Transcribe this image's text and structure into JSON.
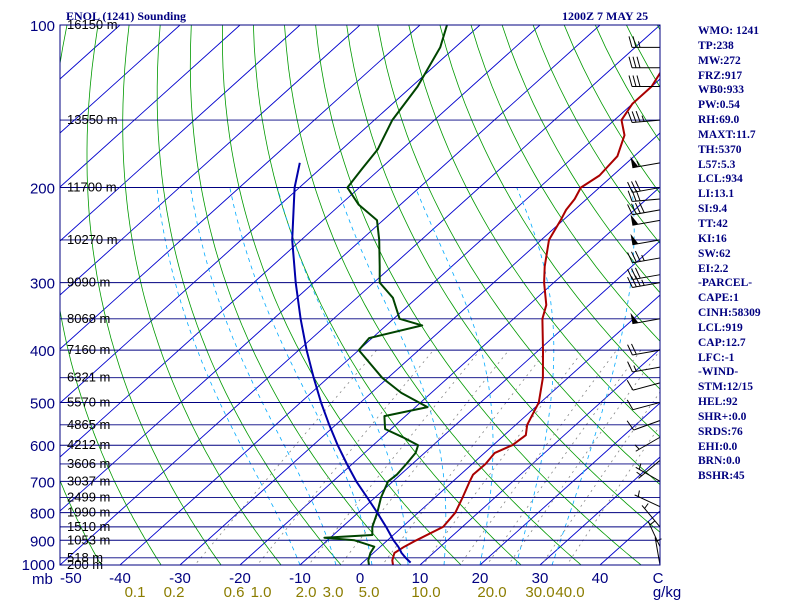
{
  "header": {
    "station": "ENOL (1241) Sounding",
    "time": "1200Z  7 MAY 25"
  },
  "indices": [
    "WMO: 1241",
    "TP:238",
    "MW:272",
    "FRZ:917",
    "WB0:933",
    "PW:0.54",
    "RH:69.0",
    "MAXT:11.7",
    "TH:5370",
    "L57:5.3",
    "LCL:934",
    "LI:13.1",
    "SI:9.4",
    "TT:42",
    "KI:16",
    "SW:62",
    "EI:2.2",
    "-PARCEL-",
    "CAPE:1",
    "CINH:58309",
    "LCL:919",
    "CAP:12.7",
    "LFC:-1",
    "-WIND-",
    "STM:12/15",
    "HEL:92",
    "SHR+:0.0",
    "SRDS:76",
    "EHI:0.0",
    "BRN:0.0",
    "BSHR:45"
  ],
  "colors": {
    "background": "#ffffff",
    "frame": "#000080",
    "isobar": "#000080",
    "isotherm": "#0000cc",
    "dry_adiabat": "#009900",
    "mixing_ratio": "#888888",
    "moist_adiabat": "#00aaff",
    "temperature": "#aa0000",
    "dewpoint": "#004400",
    "parcel": "#0000aa",
    "axis_label": "#000080",
    "mixing_label": "#8b7d00"
  },
  "chart_data": {
    "type": "line",
    "title": "",
    "xlabel": "C",
    "ylabel": "mb",
    "xlim": [
      -50,
      50
    ],
    "ylim": [
      1000,
      100
    ],
    "y_scale": "log",
    "grid": true,
    "pressure_ticks": [
      100,
      200,
      300,
      400,
      500,
      600,
      700,
      800,
      900,
      1000
    ],
    "pressure_axis_label": "mb",
    "temperature_ticks": [
      {
        "label": "-50",
        "value": -50
      },
      {
        "label": "-40",
        "value": -40
      },
      {
        "label": "-30",
        "value": -30
      },
      {
        "label": "-20",
        "value": -20
      },
      {
        "label": "-10",
        "value": -10
      },
      {
        "label": "0",
        "value": 0
      },
      {
        "label": "10",
        "value": 10
      },
      {
        "label": "20",
        "value": 20
      },
      {
        "label": "30",
        "value": 30
      },
      {
        "label": "40",
        "value": 40
      }
    ],
    "temperature_unit": "C",
    "mixing_ratio_ticks": [
      {
        "label": "0.1",
        "value": -37.5
      },
      {
        "label": "0.2",
        "value": -31
      },
      {
        "label": "0.6",
        "value": -21
      },
      {
        "label": "1.0",
        "value": -16.5
      },
      {
        "label": "2.0",
        "value": -9
      },
      {
        "label": "3.0",
        "value": -4.5
      },
      {
        "label": "5.0",
        "value": 1.5
      },
      {
        "label": "10.0",
        "value": 11
      },
      {
        "label": "20.0",
        "value": 22
      },
      {
        "label": "30.0",
        "value": 30
      },
      {
        "label": "40.0",
        "value": 35
      }
    ],
    "mixing_ratio_unit": "g/kg",
    "height_labels": [
      {
        "p": 1000,
        "label": "200 m"
      },
      {
        "p": 970,
        "label": "518 m"
      },
      {
        "p": 900,
        "label": "1053 m"
      },
      {
        "p": 850,
        "label": "1510 m"
      },
      {
        "p": 800,
        "label": "1990 m"
      },
      {
        "p": 750,
        "label": "2499 m"
      },
      {
        "p": 700,
        "label": "3037 m"
      },
      {
        "p": 650,
        "label": "3606 m"
      },
      {
        "p": 600,
        "label": "4212 m"
      },
      {
        "p": 550,
        "label": "4865 m"
      },
      {
        "p": 500,
        "label": "5570 m"
      },
      {
        "p": 450,
        "label": "6321 m"
      },
      {
        "p": 400,
        "label": "7160 m"
      },
      {
        "p": 350,
        "label": "8068 m"
      },
      {
        "p": 300,
        "label": "9090 m"
      },
      {
        "p": 250,
        "label": "10270 m"
      },
      {
        "p": 200,
        "label": "11700 m"
      },
      {
        "p": 150,
        "label": "13550 m"
      },
      {
        "p": 100,
        "label": "16150 m"
      }
    ],
    "series": [
      {
        "key": "temperature",
        "points": [
          [
            1000,
            5.5
          ],
          [
            980,
            4.5
          ],
          [
            950,
            3.5
          ],
          [
            925,
            4.0
          ],
          [
            900,
            4.8
          ],
          [
            850,
            6.8
          ],
          [
            800,
            6.2
          ],
          [
            750,
            4.6
          ],
          [
            700,
            2.8
          ],
          [
            680,
            2.1
          ],
          [
            650,
            2.2
          ],
          [
            620,
            1.7
          ],
          [
            600,
            3.2
          ],
          [
            575,
            3.6
          ],
          [
            550,
            1.9
          ],
          [
            500,
            -0.3
          ],
          [
            450,
            -4.2
          ],
          [
            400,
            -9.3
          ],
          [
            350,
            -15.2
          ],
          [
            330,
            -17.1
          ],
          [
            300,
            -21.6
          ],
          [
            280,
            -24.5
          ],
          [
            250,
            -28.7
          ],
          [
            230,
            -30.4
          ],
          [
            220,
            -31.4
          ],
          [
            210,
            -32.0
          ],
          [
            200,
            -33.1
          ],
          [
            190,
            -32.2
          ],
          [
            175,
            -32.8
          ],
          [
            160,
            -35.5
          ],
          [
            150,
            -38.8
          ],
          [
            140,
            -40.0
          ],
          [
            130,
            -40.0
          ],
          [
            120,
            -41.5
          ],
          [
            110,
            -42.5
          ],
          [
            100,
            -43.5
          ]
        ]
      },
      {
        "key": "dewpoint",
        "points": [
          [
            1000,
            1.5
          ],
          [
            980,
            0.5
          ],
          [
            950,
            -0.5
          ],
          [
            925,
            -1.0
          ],
          [
            900,
            -5.5
          ],
          [
            890,
            -11.0
          ],
          [
            880,
            -3.5
          ],
          [
            850,
            -5.0
          ],
          [
            800,
            -6.8
          ],
          [
            750,
            -9.0
          ],
          [
            700,
            -10.8
          ],
          [
            680,
            -10.6
          ],
          [
            650,
            -11.0
          ],
          [
            620,
            -11.5
          ],
          [
            600,
            -12.5
          ],
          [
            580,
            -16.5
          ],
          [
            560,
            -21.0
          ],
          [
            530,
            -23.5
          ],
          [
            510,
            -18.0
          ],
          [
            480,
            -25.0
          ],
          [
            450,
            -31.0
          ],
          [
            400,
            -40.0
          ],
          [
            380,
            -40.5
          ],
          [
            360,
            -34.0
          ],
          [
            350,
            -39.0
          ],
          [
            320,
            -44.0
          ],
          [
            300,
            -49.0
          ],
          [
            280,
            -52.0
          ],
          [
            250,
            -57.0
          ],
          [
            230,
            -61.0
          ],
          [
            215,
            -67.0
          ],
          [
            200,
            -72.0
          ],
          [
            185,
            -73.0
          ],
          [
            170,
            -74.0
          ],
          [
            150,
            -77.0
          ],
          [
            130,
            -79.0
          ],
          [
            110,
            -82.5
          ],
          [
            100,
            -85.5
          ]
        ]
      },
      {
        "key": "parcel",
        "points": [
          [
            990,
            8.0
          ],
          [
            970,
            6.3
          ],
          [
            950,
            4.7
          ],
          [
            925,
            3.0
          ],
          [
            900,
            1.0
          ],
          [
            850,
            -2.7
          ],
          [
            800,
            -6.8
          ],
          [
            750,
            -11.3
          ],
          [
            700,
            -16.1
          ],
          [
            650,
            -20.9
          ],
          [
            600,
            -25.9
          ],
          [
            550,
            -31.1
          ],
          [
            500,
            -36.6
          ],
          [
            450,
            -42.4
          ],
          [
            400,
            -48.7
          ],
          [
            350,
            -55.5
          ],
          [
            300,
            -63.0
          ],
          [
            250,
            -71.5
          ],
          [
            200,
            -80.8
          ],
          [
            180,
            -84.5
          ]
        ]
      }
    ],
    "wind_barbs": [
      {
        "p": 1000,
        "dir": 350,
        "spd": 5
      },
      {
        "p": 925,
        "dir": 335,
        "spd": 5
      },
      {
        "p": 850,
        "dir": 320,
        "spd": 5
      },
      {
        "p": 780,
        "dir": 295,
        "spd": 5
      },
      {
        "p": 700,
        "dir": 300,
        "spd": 5
      },
      {
        "p": 640,
        "dir": 230,
        "spd": 5
      },
      {
        "p": 580,
        "dir": 240,
        "spd": 5
      },
      {
        "p": 540,
        "dir": 250,
        "spd": 10
      },
      {
        "p": 500,
        "dir": 255,
        "spd": 10
      },
      {
        "p": 460,
        "dir": 255,
        "spd": 10
      },
      {
        "p": 430,
        "dir": 260,
        "spd": 15
      },
      {
        "p": 400,
        "dir": 260,
        "spd": 20
      },
      {
        "p": 350,
        "dir": 260,
        "spd": 50
      },
      {
        "p": 300,
        "dir": 260,
        "spd": 35
      },
      {
        "p": 290,
        "dir": 260,
        "spd": 30
      },
      {
        "p": 270,
        "dir": 260,
        "spd": 35
      },
      {
        "p": 250,
        "dir": 260,
        "spd": 50
      },
      {
        "p": 230,
        "dir": 260,
        "spd": 50
      },
      {
        "p": 220,
        "dir": 260,
        "spd": 40
      },
      {
        "p": 210,
        "dir": 265,
        "spd": 30
      },
      {
        "p": 200,
        "dir": 260,
        "spd": 30
      },
      {
        "p": 180,
        "dir": 260,
        "spd": 55
      },
      {
        "p": 150,
        "dir": 265,
        "spd": 35
      },
      {
        "p": 130,
        "dir": 270,
        "spd": 30
      },
      {
        "p": 120,
        "dir": 270,
        "spd": 30
      },
      {
        "p": 110,
        "dir": 270,
        "spd": 25
      }
    ]
  }
}
